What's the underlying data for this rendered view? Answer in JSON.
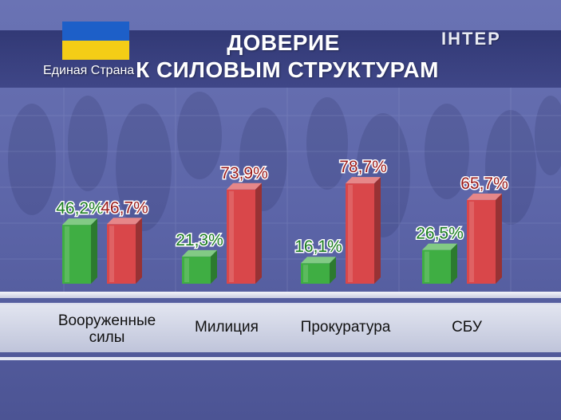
{
  "header": {
    "title_line1": "ДОВЕРИЕ",
    "title_line2": "К СИЛОВЫМ СТРУКТУРАМ",
    "channel_logo": "ІНТЕР",
    "country_label": "Единая Страна"
  },
  "colors": {
    "green": "#3fae43",
    "red": "#d9474a",
    "green_label": "#1c7d22",
    "red_label": "#9b1c1c",
    "flag_blue": "#1d5fc8",
    "flag_yellow": "#f4cd16"
  },
  "chart_data": {
    "type": "bar",
    "title": "ДОВЕРИЕ К СИЛОВЫМ СТРУКТУРАМ",
    "categories": [
      "Вооруженные силы",
      "Милиция",
      "Прокуратура",
      "СБУ"
    ],
    "category_lines": [
      [
        "Вооруженные",
        "силы"
      ],
      [
        "Милиция"
      ],
      [
        "Прокуратура"
      ],
      [
        "СБУ"
      ]
    ],
    "series": [
      {
        "color": "#3fae43",
        "values": [
          46.2,
          21.3,
          16.1,
          26.5
        ],
        "labels": [
          "46,2%",
          "21,3%",
          "16,1%",
          "26,5%"
        ]
      },
      {
        "color": "#d9474a",
        "values": [
          46.7,
          73.9,
          78.7,
          65.7
        ],
        "labels": [
          "46,7%",
          "73,9%",
          "78,7%",
          "65,7%"
        ]
      }
    ],
    "xlabel": "",
    "ylabel": "",
    "ylim": [
      0,
      100
    ],
    "grid": false,
    "legend": "none"
  }
}
